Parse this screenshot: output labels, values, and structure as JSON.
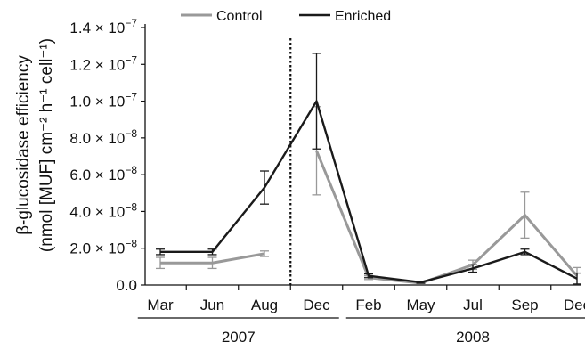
{
  "chart_data": {
    "type": "line",
    "ylabel_line1": "β-glucosidase efficiency",
    "ylabel_line2": "(nmol [MUF] cm⁻² h⁻¹ cell⁻¹)",
    "categories": [
      "Mar",
      "Jun",
      "Aug",
      "Dec",
      "Feb",
      "May",
      "Jul",
      "Sep",
      "Dec"
    ],
    "years": [
      {
        "label": "2007",
        "from": 0,
        "to": 3
      },
      {
        "label": "2008",
        "from": 4,
        "to": 8
      }
    ],
    "divider_between": [
      2,
      3
    ],
    "ylim": [
      0,
      1.4e-07
    ],
    "yticks": [
      {
        "value": 0,
        "mant": "0.0",
        "exp": ""
      },
      {
        "value": 2e-08,
        "mant": "2.0 × 10",
        "exp": "−8"
      },
      {
        "value": 4e-08,
        "mant": "4.0 × 10",
        "exp": "−8"
      },
      {
        "value": 6e-08,
        "mant": "6.0 × 10",
        "exp": "−8"
      },
      {
        "value": 8e-08,
        "mant": "8.0 × 10",
        "exp": "−8"
      },
      {
        "value": 1e-07,
        "mant": "1.0 × 10",
        "exp": "−7"
      },
      {
        "value": 1.2e-07,
        "mant": "1.2 × 10",
        "exp": "−7"
      },
      {
        "value": 1.4e-07,
        "mant": "1.4 × 10",
        "exp": "−7"
      }
    ],
    "series": [
      {
        "name": "Control",
        "color": "#999999",
        "segments": [
          [
            0,
            1,
            2
          ],
          [
            3,
            4,
            5,
            6,
            7,
            8
          ]
        ],
        "values": [
          1.2e-08,
          1.2e-08,
          1.7e-08,
          7.3e-08,
          4e-09,
          1e-09,
          1.1e-08,
          3.8e-08,
          5e-09
        ],
        "errors": [
          3e-09,
          3e-09,
          1.5e-09,
          2.4e-08,
          1e-09,
          5e-10,
          2.5e-09,
          1.25e-08,
          4.5e-09
        ]
      },
      {
        "name": "Enriched",
        "color": "#1a1a1a",
        "segments": [
          [
            0,
            1,
            2,
            3,
            4,
            5,
            6,
            7,
            8
          ]
        ],
        "values": [
          1.8e-08,
          1.8e-08,
          5.3e-08,
          1e-07,
          5e-09,
          1.5e-09,
          9e-09,
          1.8e-08,
          3.5e-09
        ],
        "errors": [
          1.5e-09,
          1.5e-09,
          9e-09,
          2.6e-08,
          1e-09,
          5e-10,
          2e-09,
          1.5e-09,
          3e-09
        ]
      }
    ],
    "legend_position": "top-center",
    "grid": false
  }
}
